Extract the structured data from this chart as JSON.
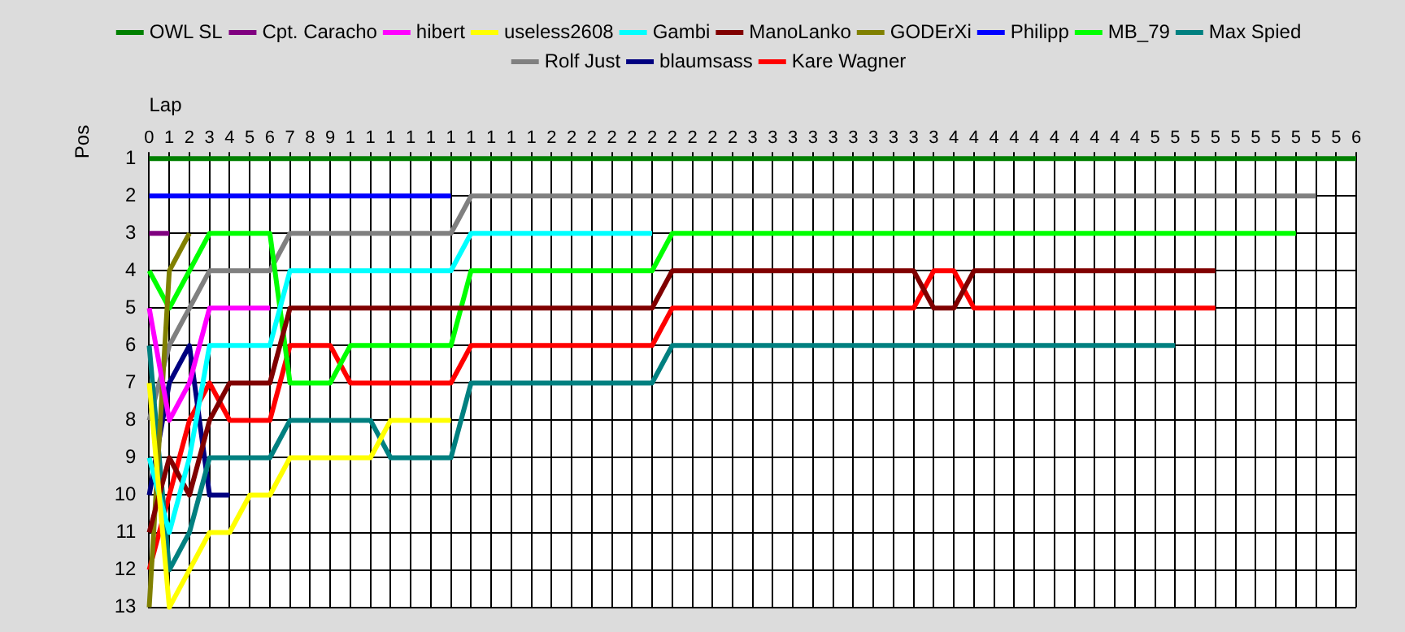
{
  "chart_data": {
    "type": "line",
    "xlabel": "Lap",
    "ylabel": "Pos",
    "categories": [
      "0",
      "1",
      "2",
      "3",
      "4",
      "5",
      "6",
      "7",
      "8",
      "9",
      "1",
      "1",
      "1",
      "1",
      "1",
      "1",
      "1",
      "1",
      "1",
      "1",
      "2",
      "2",
      "2",
      "2",
      "2",
      "2",
      "2",
      "2",
      "2",
      "2",
      "3",
      "3",
      "3",
      "3",
      "3",
      "3",
      "3",
      "3",
      "3",
      "3",
      "4",
      "4",
      "4",
      "4",
      "4",
      "4",
      "4",
      "4",
      "4",
      "4",
      "5",
      "5",
      "5",
      "5",
      "5",
      "5",
      "5",
      "5",
      "5",
      "5",
      "6"
    ],
    "ylim": [
      13,
      1
    ],
    "yticks": [
      1,
      2,
      3,
      4,
      5,
      6,
      7,
      8,
      9,
      10,
      11,
      12,
      13
    ],
    "grid": true,
    "legend": "top",
    "marker": "none",
    "line_style": "solid",
    "series": [
      {
        "name": "OWL SL",
        "color": "#008000",
        "values": [
          1,
          1,
          1,
          1,
          1,
          1,
          1,
          1,
          1,
          1,
          1,
          1,
          1,
          1,
          1,
          1,
          1,
          1,
          1,
          1,
          1,
          1,
          1,
          1,
          1,
          1,
          1,
          1,
          1,
          1,
          1,
          1,
          1,
          1,
          1,
          1,
          1,
          1,
          1,
          1,
          1,
          1,
          1,
          1,
          1,
          1,
          1,
          1,
          1,
          1,
          1,
          1,
          1,
          1,
          1,
          1,
          1,
          1,
          1,
          1,
          1
        ]
      },
      {
        "name": "Cpt. Caracho",
        "color": "#800080",
        "values": [
          3,
          3,
          null,
          null,
          null,
          null,
          null,
          null,
          null,
          null,
          null,
          null,
          null,
          null,
          null,
          null,
          null,
          null,
          null,
          null,
          null,
          null,
          null,
          null,
          null,
          null,
          null,
          null,
          null,
          null,
          null,
          null,
          null,
          null,
          null,
          null,
          null,
          null,
          null,
          null,
          null,
          null,
          null,
          null,
          null,
          null,
          null,
          null,
          null,
          null,
          null,
          null,
          null,
          null,
          null,
          null,
          null,
          null,
          null,
          null,
          null
        ]
      },
      {
        "name": "hibert",
        "color": "#ff00ff",
        "values": [
          5,
          8,
          7,
          5,
          5,
          5,
          5,
          null,
          null,
          null,
          null,
          null,
          null,
          null,
          null,
          null,
          null,
          null,
          null,
          null,
          null,
          null,
          null,
          null,
          null,
          null,
          null,
          null,
          null,
          null,
          null,
          null,
          null,
          null,
          null,
          null,
          null,
          null,
          null,
          null,
          null,
          null,
          null,
          null,
          null,
          null,
          null,
          null,
          null,
          null,
          null,
          null,
          null,
          null,
          null,
          null,
          null,
          null,
          null,
          null,
          null
        ]
      },
      {
        "name": "useless2608",
        "color": "#ffff00",
        "values": [
          7,
          13,
          12,
          11,
          11,
          10,
          10,
          9,
          9,
          9,
          9,
          9,
          8,
          8,
          8,
          8,
          null,
          null,
          null,
          null,
          null,
          null,
          null,
          null,
          null,
          null,
          null,
          null,
          null,
          null,
          null,
          null,
          null,
          null,
          null,
          null,
          null,
          null,
          null,
          null,
          null,
          null,
          null,
          null,
          null,
          null,
          null,
          null,
          null,
          null,
          null,
          null,
          null,
          null,
          null,
          null,
          null,
          null,
          null,
          null,
          null
        ]
      },
      {
        "name": "Gambi",
        "color": "#00ffff",
        "values": [
          9,
          11,
          9,
          6,
          6,
          6,
          6,
          4,
          4,
          4,
          4,
          4,
          4,
          4,
          4,
          4,
          3,
          3,
          3,
          3,
          3,
          3,
          3,
          3,
          3,
          3,
          null,
          null,
          null,
          null,
          null,
          null,
          null,
          null,
          null,
          null,
          null,
          null,
          null,
          null,
          null,
          null,
          null,
          null,
          null,
          null,
          null,
          null,
          null,
          null,
          null,
          null,
          null,
          null,
          null,
          null,
          null,
          null,
          null,
          null,
          null
        ]
      },
      {
        "name": "ManoLanko",
        "color": "#800000",
        "values": [
          11,
          9,
          10,
          8,
          7,
          7,
          7,
          5,
          5,
          5,
          5,
          5,
          5,
          5,
          5,
          5,
          5,
          5,
          5,
          5,
          5,
          5,
          5,
          5,
          5,
          5,
          4,
          4,
          4,
          4,
          4,
          4,
          4,
          4,
          4,
          4,
          4,
          4,
          4,
          5,
          5,
          4,
          4,
          4,
          4,
          4,
          4,
          4,
          4,
          4,
          4,
          4,
          4,
          4,
          null,
          null,
          null,
          null,
          null,
          null,
          null
        ]
      },
      {
        "name": "GODErXi",
        "color": "#808000",
        "values": [
          13,
          4,
          3,
          null,
          null,
          null,
          null,
          null,
          null,
          null,
          null,
          null,
          null,
          null,
          null,
          null,
          null,
          null,
          null,
          null,
          null,
          null,
          null,
          null,
          null,
          null,
          null,
          null,
          null,
          null,
          null,
          null,
          null,
          null,
          null,
          null,
          null,
          null,
          null,
          null,
          null,
          null,
          null,
          null,
          null,
          null,
          null,
          null,
          null,
          null,
          null,
          null,
          null,
          null,
          null,
          null,
          null,
          null,
          null,
          null,
          null
        ]
      },
      {
        "name": "Philipp",
        "color": "#0000ff",
        "values": [
          2,
          2,
          2,
          2,
          2,
          2,
          2,
          2,
          2,
          2,
          2,
          2,
          2,
          2,
          2,
          2,
          null,
          null,
          null,
          null,
          null,
          null,
          null,
          null,
          null,
          null,
          null,
          null,
          null,
          null,
          null,
          null,
          null,
          null,
          null,
          null,
          null,
          null,
          null,
          null,
          null,
          null,
          null,
          null,
          null,
          null,
          null,
          null,
          null,
          null,
          null,
          null,
          null,
          null,
          null,
          null,
          null,
          null,
          null,
          null,
          null
        ]
      },
      {
        "name": "MB_79",
        "color": "#00ff00",
        "values": [
          4,
          5,
          4,
          3,
          3,
          3,
          3,
          7,
          7,
          7,
          6,
          6,
          6,
          6,
          6,
          6,
          4,
          4,
          4,
          4,
          4,
          4,
          4,
          4,
          4,
          4,
          3,
          3,
          3,
          3,
          3,
          3,
          3,
          3,
          3,
          3,
          3,
          3,
          3,
          3,
          3,
          3,
          3,
          3,
          3,
          3,
          3,
          3,
          3,
          3,
          3,
          3,
          3,
          3,
          3,
          3,
          3,
          3,
          null,
          null,
          null
        ]
      },
      {
        "name": "Max Spied",
        "color": "#008080",
        "values": [
          6,
          12,
          11,
          9,
          9,
          9,
          9,
          8,
          8,
          8,
          8,
          8,
          9,
          9,
          9,
          9,
          7,
          7,
          7,
          7,
          7,
          7,
          7,
          7,
          7,
          7,
          6,
          6,
          6,
          6,
          6,
          6,
          6,
          6,
          6,
          6,
          6,
          6,
          6,
          6,
          6,
          6,
          6,
          6,
          6,
          6,
          6,
          6,
          6,
          6,
          6,
          6,
          null,
          null,
          null,
          null,
          null,
          null,
          null,
          null,
          null
        ]
      },
      {
        "name": "Rolf Just",
        "color": "#808080",
        "values": [
          8,
          6,
          5,
          4,
          4,
          4,
          4,
          3,
          3,
          3,
          3,
          3,
          3,
          3,
          3,
          3,
          2,
          2,
          2,
          2,
          2,
          2,
          2,
          2,
          2,
          2,
          2,
          2,
          2,
          2,
          2,
          2,
          2,
          2,
          2,
          2,
          2,
          2,
          2,
          2,
          2,
          2,
          2,
          2,
          2,
          2,
          2,
          2,
          2,
          2,
          2,
          2,
          2,
          2,
          2,
          2,
          2,
          2,
          2,
          null,
          null
        ]
      },
      {
        "name": "blaumsass",
        "color": "#000080",
        "values": [
          10,
          7,
          6,
          10,
          10,
          null,
          null,
          null,
          null,
          null,
          null,
          null,
          null,
          null,
          null,
          null,
          null,
          null,
          null,
          null,
          null,
          null,
          null,
          null,
          null,
          null,
          null,
          null,
          null,
          null,
          null,
          null,
          null,
          null,
          null,
          null,
          null,
          null,
          null,
          null,
          null,
          null,
          null,
          null,
          null,
          null,
          null,
          null,
          null,
          null,
          null,
          null,
          null,
          null,
          null,
          null,
          null,
          null,
          null,
          null,
          null
        ]
      },
      {
        "name": "Kare Wagner",
        "color": "#ff0000",
        "values": [
          12,
          10,
          8,
          7,
          8,
          8,
          8,
          6,
          6,
          6,
          7,
          7,
          7,
          7,
          7,
          7,
          6,
          6,
          6,
          6,
          6,
          6,
          6,
          6,
          6,
          6,
          5,
          5,
          5,
          5,
          5,
          5,
          5,
          5,
          5,
          5,
          5,
          5,
          5,
          4,
          4,
          5,
          5,
          5,
          5,
          5,
          5,
          5,
          5,
          5,
          5,
          5,
          5,
          5,
          null,
          null,
          null,
          null,
          null,
          null,
          null
        ]
      }
    ]
  }
}
